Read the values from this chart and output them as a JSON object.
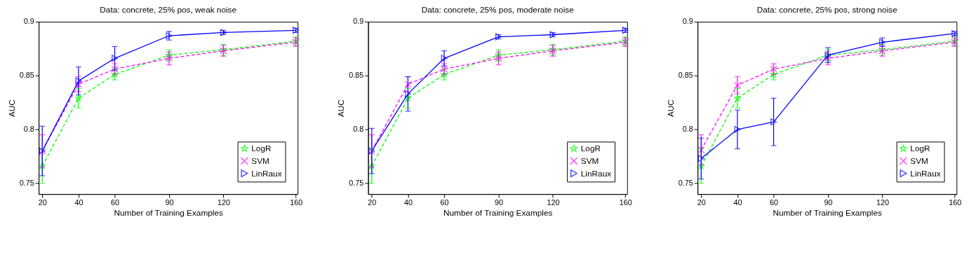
{
  "chart_data": [
    {
      "type": "line",
      "title": "Data: concrete, 25% pos, weak noise",
      "xlabel": "Number of Training Examples",
      "ylabel": "AUC",
      "x": [
        20,
        40,
        60,
        90,
        120,
        160
      ],
      "xlim": [
        18,
        161
      ],
      "ylim": [
        0.74,
        0.9
      ],
      "xticks": [
        20,
        40,
        60,
        90,
        120,
        160
      ],
      "yticks": [
        0.75,
        0.8,
        0.85,
        0.9
      ],
      "grid": false,
      "legend": "bottom right",
      "series": [
        {
          "name": "LogR",
          "color": "#00ff00",
          "line_style": "dashed",
          "marker": "star",
          "values": [
            0.766,
            0.829,
            0.851,
            0.869,
            0.874,
            0.882
          ],
          "errors": [
            0.016,
            0.009,
            0.005,
            0.005,
            0.005,
            0.004
          ]
        },
        {
          "name": "SVM",
          "color": "#ff00ff",
          "line_style": "dashed",
          "marker": "cross",
          "values": [
            0.78,
            0.842,
            0.856,
            0.866,
            0.873,
            0.881
          ],
          "errors": [
            0.015,
            0.007,
            0.005,
            0.006,
            0.005,
            0.004
          ]
        },
        {
          "name": "LinRaux",
          "color": "#0000ff",
          "line_style": "solid",
          "marker": "triangle",
          "values": [
            0.78,
            0.845,
            0.866,
            0.887,
            0.89,
            0.892
          ],
          "errors": [
            0.023,
            0.013,
            0.011,
            0.004,
            0.002,
            0.002
          ]
        }
      ]
    },
    {
      "type": "line",
      "title": "Data: concrete, 25% pos, moderate noise",
      "xlabel": "Number of Training Examples",
      "ylabel": "AUC",
      "x": [
        20,
        40,
        60,
        90,
        120,
        160
      ],
      "xlim": [
        18,
        161
      ],
      "ylim": [
        0.74,
        0.9
      ],
      "xticks": [
        20,
        40,
        60,
        90,
        120,
        160
      ],
      "yticks": [
        0.75,
        0.8,
        0.85,
        0.9
      ],
      "grid": false,
      "legend": "bottom right",
      "series": [
        {
          "name": "LogR",
          "color": "#00ff00",
          "line_style": "dashed",
          "marker": "star",
          "values": [
            0.766,
            0.829,
            0.851,
            0.869,
            0.874,
            0.882
          ],
          "errors": [
            0.016,
            0.009,
            0.005,
            0.005,
            0.005,
            0.004
          ]
        },
        {
          "name": "SVM",
          "color": "#ff00ff",
          "line_style": "dashed",
          "marker": "cross",
          "values": [
            0.78,
            0.842,
            0.856,
            0.866,
            0.873,
            0.881
          ],
          "errors": [
            0.015,
            0.007,
            0.005,
            0.006,
            0.005,
            0.004
          ]
        },
        {
          "name": "LinRaux",
          "color": "#0000ff",
          "line_style": "solid",
          "marker": "triangle",
          "values": [
            0.78,
            0.833,
            0.866,
            0.886,
            0.888,
            0.892
          ],
          "errors": [
            0.021,
            0.016,
            0.007,
            0.002,
            0.002,
            0.002
          ]
        }
      ]
    },
    {
      "type": "line",
      "title": "Data: concrete, 25% pos, strong noise",
      "xlabel": "Number of Training Examples",
      "ylabel": "AUC",
      "x": [
        20,
        40,
        60,
        90,
        120,
        160
      ],
      "xlim": [
        18,
        161
      ],
      "ylim": [
        0.74,
        0.9
      ],
      "xticks": [
        20,
        40,
        60,
        90,
        120,
        160
      ],
      "yticks": [
        0.75,
        0.8,
        0.85,
        0.9
      ],
      "grid": false,
      "legend": "bottom right",
      "series": [
        {
          "name": "LogR",
          "color": "#00ff00",
          "line_style": "dashed",
          "marker": "star",
          "values": [
            0.766,
            0.829,
            0.851,
            0.869,
            0.874,
            0.882
          ],
          "errors": [
            0.016,
            0.009,
            0.005,
            0.005,
            0.005,
            0.004
          ]
        },
        {
          "name": "SVM",
          "color": "#ff00ff",
          "line_style": "dashed",
          "marker": "cross",
          "values": [
            0.781,
            0.841,
            0.856,
            0.866,
            0.873,
            0.881
          ],
          "errors": [
            0.014,
            0.008,
            0.005,
            0.006,
            0.005,
            0.004
          ]
        },
        {
          "name": "LinRaux",
          "color": "#0000ff",
          "line_style": "solid",
          "marker": "triangle",
          "values": [
            0.773,
            0.8,
            0.807,
            0.869,
            0.881,
            0.889
          ],
          "errors": [
            0.019,
            0.018,
            0.022,
            0.007,
            0.004,
            0.002
          ]
        }
      ]
    }
  ]
}
